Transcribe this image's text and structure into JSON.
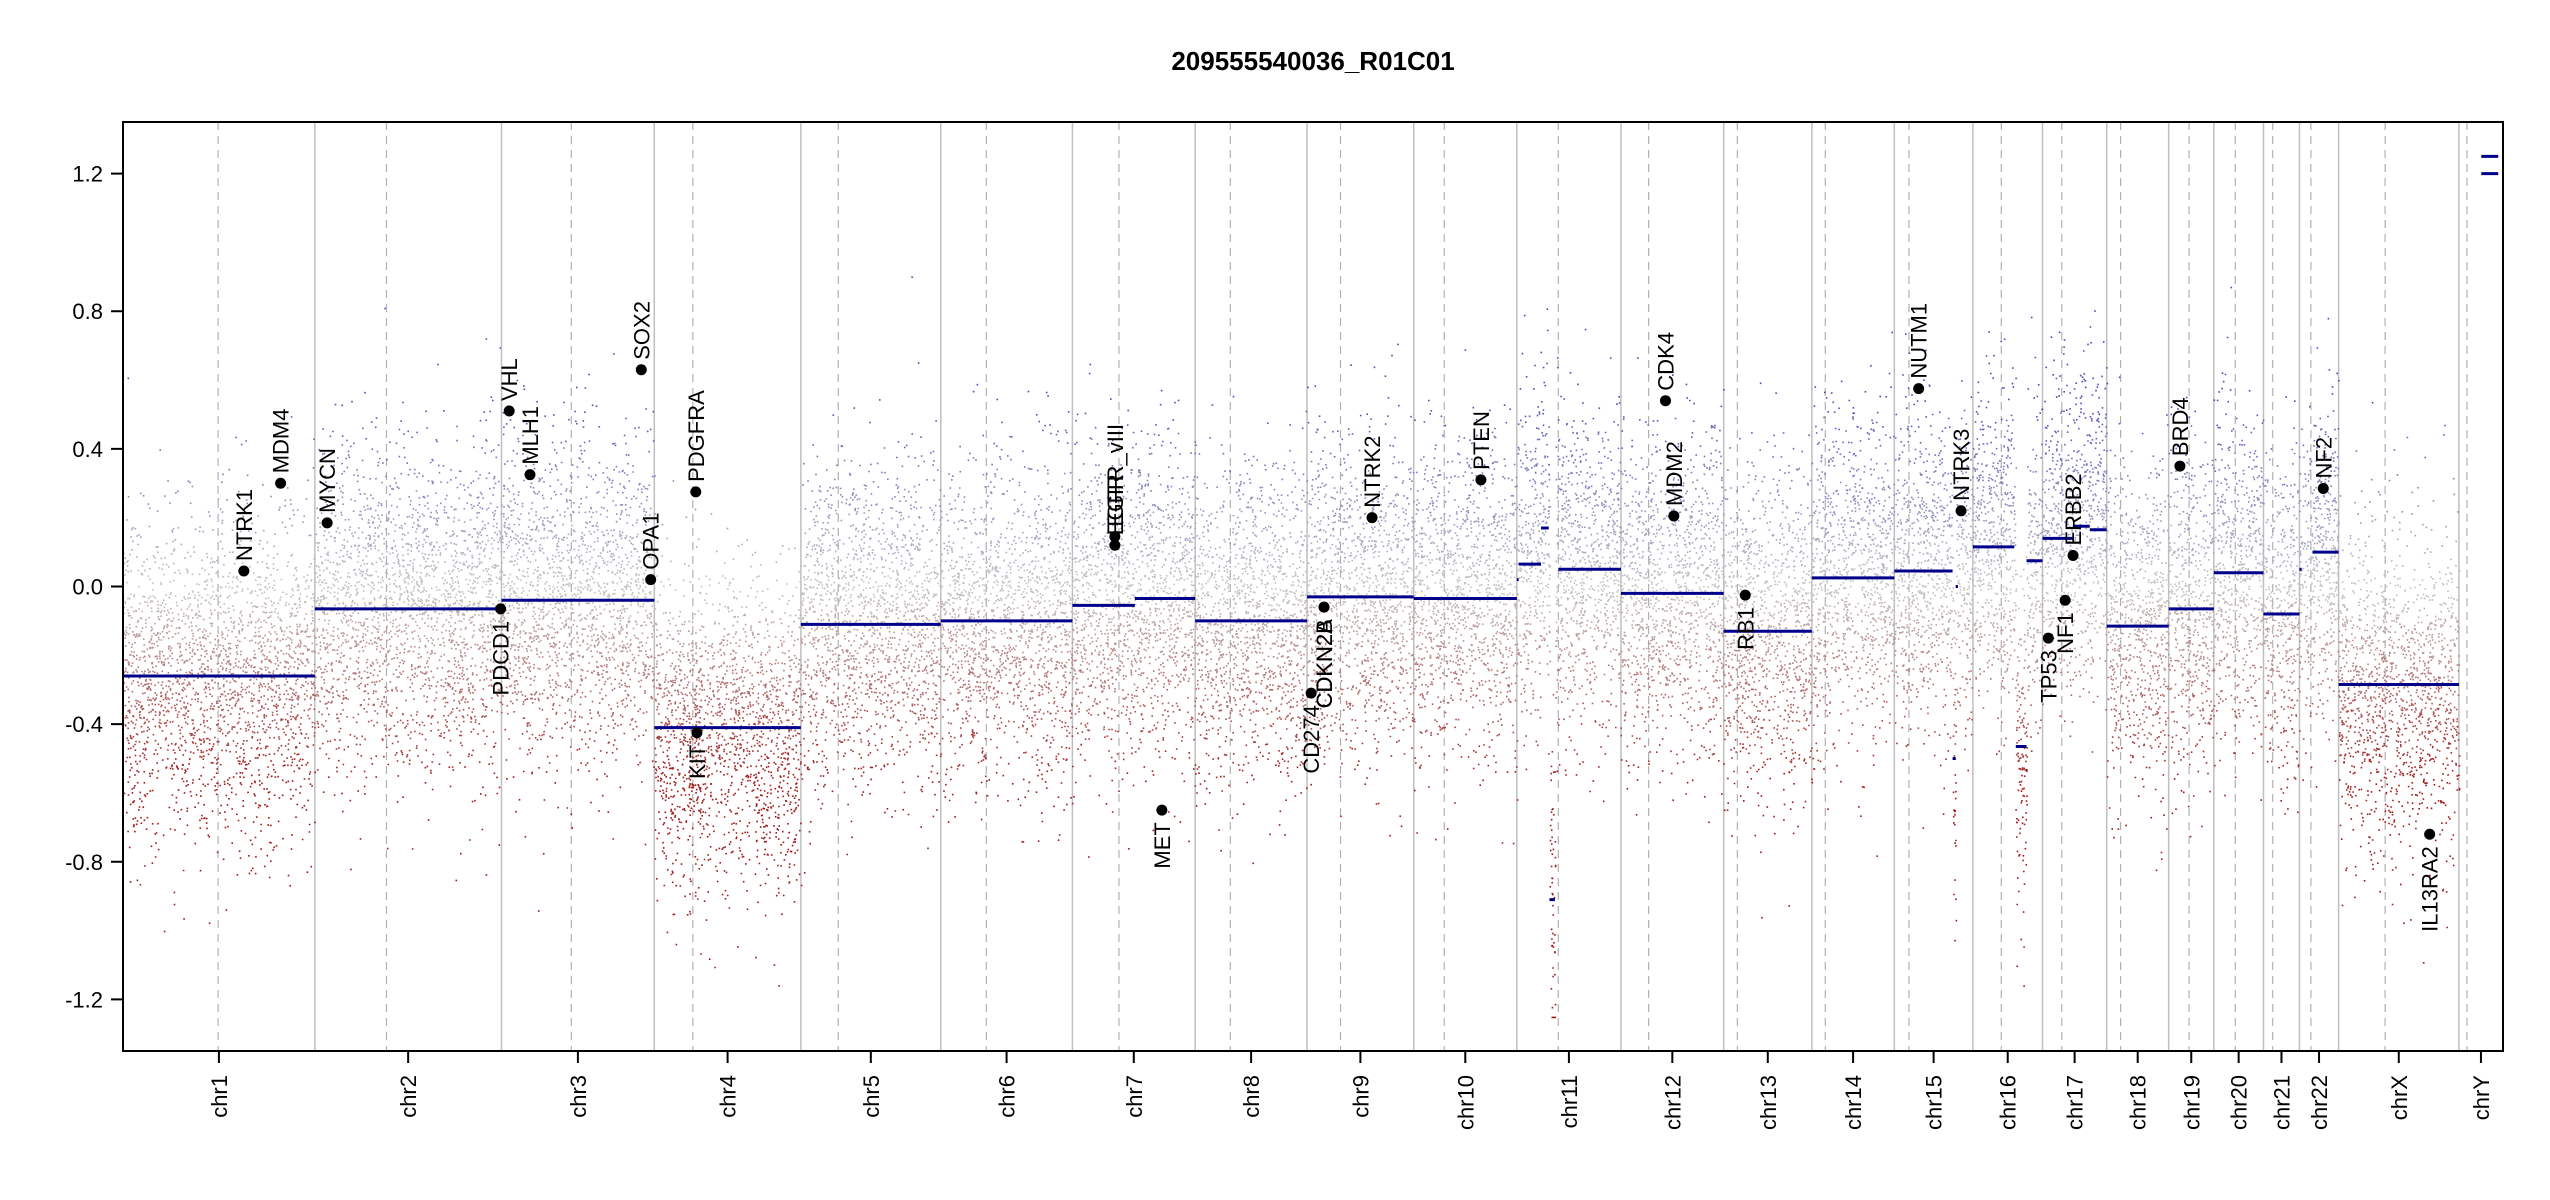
{
  "chart_data": {
    "type": "scatter",
    "title": "209555540036_R01C01",
    "xlabel": "",
    "ylabel": "",
    "ylim": [
      -1.35,
      1.35
    ],
    "y_ticks": [
      {
        "value": -1.2,
        "label": "-1.2"
      },
      {
        "value": -0.8,
        "label": "-0.8"
      },
      {
        "value": -0.4,
        "label": "-0.4"
      },
      {
        "value": 0.0,
        "label": "0.0"
      },
      {
        "value": 0.4,
        "label": "0.4"
      },
      {
        "value": 0.8,
        "label": "0.8"
      },
      {
        "value": 1.2,
        "label": "1.2"
      }
    ],
    "grid": false,
    "colors": {
      "segment": "#00008b",
      "gain": "#4b4bb8",
      "loss": "#a01a1a",
      "neutral": "#c4c4c4",
      "boundary": "#bfbfbf",
      "centromere": "#b0b0b0",
      "gene_marker": "#000000"
    },
    "chromosomes": [
      {
        "name": "chr1",
        "start": 0.0,
        "end": 248.9,
        "centromere": 123.4
      },
      {
        "name": "chr2",
        "start": 248.9,
        "end": 491.1,
        "centromere": 341.9
      },
      {
        "name": "chr3",
        "start": 491.1,
        "end": 689.4,
        "centromere": 581.7
      },
      {
        "name": "chr4",
        "start": 689.4,
        "end": 879.6,
        "centromere": 739.4
      },
      {
        "name": "chr5",
        "start": 879.6,
        "end": 1061.1,
        "centromere": 928.1
      },
      {
        "name": "chr6",
        "start": 1061.1,
        "end": 1231.9,
        "centromere": 1120.2
      },
      {
        "name": "chr7",
        "start": 1231.9,
        "end": 1391.2,
        "centromere": 1292.3
      },
      {
        "name": "chr8",
        "start": 1391.2,
        "end": 1536.4,
        "centromere": 1436.8
      },
      {
        "name": "chr9",
        "start": 1536.4,
        "end": 1674.8,
        "centromere": 1579.8
      },
      {
        "name": "chr10",
        "start": 1674.8,
        "end": 1808.6,
        "centromere": 1714.4
      },
      {
        "name": "chr11",
        "start": 1808.6,
        "end": 1943.7,
        "centromere": 1862.4
      },
      {
        "name": "chr12",
        "start": 1943.7,
        "end": 2077.0,
        "centromere": 1979.6
      },
      {
        "name": "chr13",
        "start": 2077.0,
        "end": 2191.4,
        "centromere": 2094.7
      },
      {
        "name": "chr14",
        "start": 2191.4,
        "end": 2298.4,
        "centromere": 2208.8
      },
      {
        "name": "chr15",
        "start": 2298.4,
        "end": 2400.4,
        "centromere": 2317.4
      },
      {
        "name": "chr16",
        "start": 2400.4,
        "end": 2490.7,
        "centromere": 2437.2
      },
      {
        "name": "chr17",
        "start": 2490.7,
        "end": 2574.0,
        "centromere": 2515.7
      },
      {
        "name": "chr18",
        "start": 2574.0,
        "end": 2654.4,
        "centromere": 2592.0
      },
      {
        "name": "chr19",
        "start": 2654.4,
        "end": 2713.0,
        "centromere": 2680.9
      },
      {
        "name": "chr20",
        "start": 2713.0,
        "end": 2777.4,
        "centromere": 2740.8
      },
      {
        "name": "chr21",
        "start": 2777.4,
        "end": 2824.1,
        "centromere": 2789.4
      },
      {
        "name": "chr22",
        "start": 2824.1,
        "end": 2874.9,
        "centromere": 2838.9
      },
      {
        "name": "chrX",
        "start": 2874.9,
        "end": 3031.0,
        "centromere": 2935.3
      },
      {
        "name": "chrY",
        "start": 3031.0,
        "end": 3088.2,
        "centromere": 3041.4
      }
    ],
    "segments": [
      {
        "start": 0,
        "end": 248.9,
        "value": -0.26
      },
      {
        "start": 248.9,
        "end": 491.1,
        "value": -0.065
      },
      {
        "start": 491.1,
        "end": 689.4,
        "value": -0.04
      },
      {
        "start": 689.4,
        "end": 879.6,
        "value": -0.41
      },
      {
        "start": 879.6,
        "end": 1061.1,
        "value": -0.11
      },
      {
        "start": 1061.1,
        "end": 1231.9,
        "value": -0.1
      },
      {
        "start": 1231.9,
        "end": 1313,
        "value": -0.055
      },
      {
        "start": 1313,
        "end": 1391.2,
        "value": -0.035
      },
      {
        "start": 1391.2,
        "end": 1536.4,
        "value": -0.1
      },
      {
        "start": 1536.4,
        "end": 1674.8,
        "value": -0.03
      },
      {
        "start": 1674.8,
        "end": 1808.6,
        "value": -0.035
      },
      {
        "start": 1808.6,
        "end": 1811,
        "value": 0.02
      },
      {
        "start": 1811,
        "end": 1840,
        "value": 0.065
      },
      {
        "start": 1840,
        "end": 1850,
        "value": 0.17
      },
      {
        "start": 1851,
        "end": 1858,
        "value": -0.91
      },
      {
        "start": 1862.4,
        "end": 1943.7,
        "value": 0.05
      },
      {
        "start": 1943.7,
        "end": 2077.0,
        "value": -0.02
      },
      {
        "start": 2077.0,
        "end": 2100,
        "value": -0.13
      },
      {
        "start": 2100,
        "end": 2191.4,
        "value": -0.13
      },
      {
        "start": 2191.4,
        "end": 2298.4,
        "value": 0.025
      },
      {
        "start": 2298.4,
        "end": 2374,
        "value": 0.045
      },
      {
        "start": 2374,
        "end": 2378,
        "value": -0.5
      },
      {
        "start": 2378,
        "end": 2381,
        "value": 0.0
      },
      {
        "start": 2400.4,
        "end": 2454,
        "value": 0.115
      },
      {
        "start": 2456,
        "end": 2470,
        "value": -0.465
      },
      {
        "start": 2470,
        "end": 2490.7,
        "value": 0.075
      },
      {
        "start": 2490.7,
        "end": 2530,
        "value": 0.14
      },
      {
        "start": 2530,
        "end": 2552,
        "value": 0.175
      },
      {
        "start": 2552,
        "end": 2574.0,
        "value": 0.165
      },
      {
        "start": 2574.0,
        "end": 2654.4,
        "value": -0.115
      },
      {
        "start": 2654.4,
        "end": 2713.0,
        "value": -0.065
      },
      {
        "start": 2713.0,
        "end": 2777.4,
        "value": 0.04
      },
      {
        "start": 2777.4,
        "end": 2824.1,
        "value": -0.08
      },
      {
        "start": 2824.1,
        "end": 2827,
        "value": 0.05
      },
      {
        "start": 2841,
        "end": 2874.9,
        "value": 0.1
      },
      {
        "start": 2874.9,
        "end": 3031.0,
        "value": -0.285
      },
      {
        "start": 3060,
        "end": 3082,
        "value": 1.25
      },
      {
        "start": 3060,
        "end": 3082,
        "value": 1.2
      }
    ],
    "genes": [
      {
        "name": "NTRK1",
        "pos": 156.8,
        "value": 0.045,
        "label_side": "above"
      },
      {
        "name": "MDM4",
        "pos": 204.5,
        "value": 0.3,
        "label_side": "above"
      },
      {
        "name": "MYCN",
        "pos": 264.9,
        "value": 0.185,
        "label_side": "above"
      },
      {
        "name": "PDCD1",
        "pos": 490.0,
        "value": -0.065,
        "label_side": "below"
      },
      {
        "name": "VHL",
        "pos": 501.1,
        "value": 0.51,
        "label_side": "above"
      },
      {
        "name": "MLH1",
        "pos": 528.1,
        "value": 0.325,
        "label_side": "above"
      },
      {
        "name": "SOX2",
        "pos": 672.5,
        "value": 0.63,
        "label_side": "above"
      },
      {
        "name": "OPA1",
        "pos": 684.7,
        "value": 0.02,
        "label_side": "above"
      },
      {
        "name": "PDGFRA",
        "pos": 743.2,
        "value": 0.275,
        "label_side": "above"
      },
      {
        "name": "KIT",
        "pos": 744.7,
        "value": -0.425,
        "label_side": "below"
      },
      {
        "name": "EGFR_vIII",
        "pos": 1287.0,
        "value": 0.145,
        "label_side": "above"
      },
      {
        "name": "EGFR",
        "pos": 1287.0,
        "value": 0.12,
        "label_side": "above"
      },
      {
        "name": "MET",
        "pos": 1348.0,
        "value": -0.65,
        "label_side": "below"
      },
      {
        "name": "CD274",
        "pos": 1541.7,
        "value": -0.31,
        "label_side": "below"
      },
      {
        "name": "CDKN2A",
        "pos": 1558.4,
        "value": -0.06,
        "label_side": "below"
      },
      {
        "name": "CDKN2B",
        "pos": 1558.4,
        "value": -0.06,
        "label_side": "below"
      },
      {
        "name": "NTRK2",
        "pos": 1620.7,
        "value": 0.2,
        "label_side": "above"
      },
      {
        "name": "PTEN",
        "pos": 1762.0,
        "value": 0.31,
        "label_side": "above"
      },
      {
        "name": "MDM2",
        "pos": 2012.3,
        "value": 0.205,
        "label_side": "above"
      },
      {
        "name": "CDK4",
        "pos": 2001.5,
        "value": 0.54,
        "label_side": "above"
      },
      {
        "name": "RB1",
        "pos": 2105.0,
        "value": -0.025,
        "label_side": "below"
      },
      {
        "name": "NUTM1",
        "pos": 2330.0,
        "value": 0.575,
        "label_side": "above"
      },
      {
        "name": "NTRK3",
        "pos": 2385.0,
        "value": 0.22,
        "label_side": "above"
      },
      {
        "name": "TP53",
        "pos": 2498.2,
        "value": -0.15,
        "label_side": "below"
      },
      {
        "name": "NF1",
        "pos": 2520.0,
        "value": -0.04,
        "label_side": "below"
      },
      {
        "name": "ERBB2",
        "pos": 2530.3,
        "value": 0.09,
        "label_side": "above"
      },
      {
        "name": "BRD4",
        "pos": 2669.0,
        "value": 0.35,
        "label_side": "above"
      },
      {
        "name": "NF2",
        "pos": 2855.0,
        "value": 0.285,
        "label_side": "above"
      },
      {
        "name": "IL13RA2",
        "pos": 2993.0,
        "value": -0.72,
        "label_side": "below"
      }
    ]
  }
}
